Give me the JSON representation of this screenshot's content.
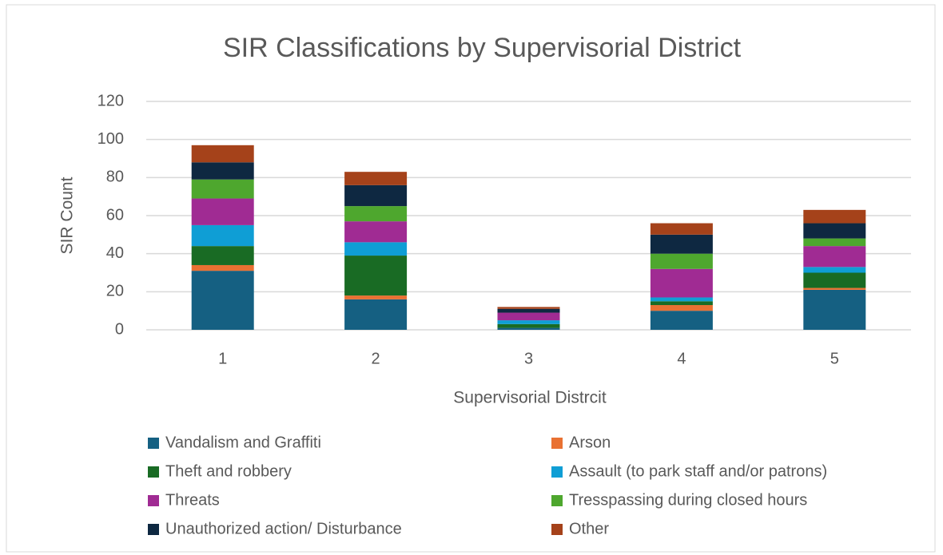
{
  "chart_data": {
    "type": "stacked_bar",
    "title": "SIR Classifications by Supervisorial District",
    "x_label": "Supervisorial Distrcit",
    "y_label": "SIR Count",
    "categories": [
      "1",
      "2",
      "3",
      "4",
      "5"
    ],
    "series": [
      {
        "name": "Vandalism and Graffiti",
        "color": "#156082",
        "values": [
          31,
          16,
          1,
          10,
          21
        ]
      },
      {
        "name": "Arson",
        "color": "#e97132",
        "values": [
          3,
          2,
          0,
          3,
          1
        ]
      },
      {
        "name": "Theft and robbery",
        "color": "#196b24",
        "values": [
          10,
          21,
          2,
          2,
          8
        ]
      },
      {
        "name": "Assault (to park staff and/or patrons)",
        "color": "#0f9ed5",
        "values": [
          11,
          7,
          2,
          2,
          3
        ]
      },
      {
        "name": "Threats",
        "color": "#a02b93",
        "values": [
          14,
          11,
          4,
          15,
          11
        ]
      },
      {
        "name": "Tresspassing during closed hours",
        "color": "#4ea72e",
        "values": [
          10,
          8,
          0,
          8,
          4
        ]
      },
      {
        "name": "Unauthorized action/ Disturbance",
        "color": "#0e2841",
        "values": [
          9,
          11,
          2,
          10,
          8
        ]
      },
      {
        "name": "Other",
        "color": "#a5421a",
        "values": [
          9,
          7,
          1,
          6,
          7
        ]
      }
    ],
    "ylim": [
      0,
      120
    ],
    "yticks": [
      0,
      20,
      40,
      60,
      80,
      100,
      120
    ],
    "grid": true,
    "legend": "bottom"
  }
}
